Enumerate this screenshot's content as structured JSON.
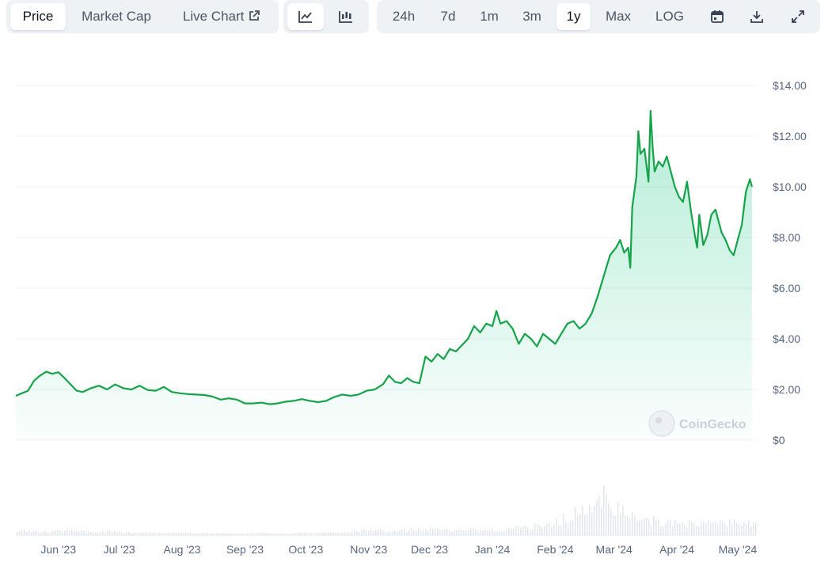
{
  "toolbar": {
    "metric_tabs": [
      {
        "label": "Price",
        "active": true
      },
      {
        "label": "Market Cap",
        "active": false
      },
      {
        "label": "Live Chart",
        "active": false
      }
    ],
    "view_icons": [
      {
        "icon": "line-chart-icon",
        "active": true
      },
      {
        "icon": "candlestick-chart-icon",
        "active": false
      }
    ],
    "ranges": [
      {
        "label": "24h",
        "active": false
      },
      {
        "label": "7d",
        "active": false
      },
      {
        "label": "1m",
        "active": false
      },
      {
        "label": "3m",
        "active": false
      },
      {
        "label": "1y",
        "active": true
      },
      {
        "label": "Max",
        "active": false
      },
      {
        "label": "LOG",
        "active": false
      }
    ],
    "action_icons": [
      "calendar-icon",
      "download-icon",
      "expand-icon"
    ]
  },
  "watermark": "CoinGecko",
  "colors": {
    "line": "#16a34a",
    "fill_top": "#16c784",
    "grid": "#eef0f3",
    "text": "#58667e",
    "volume": "#e2e5ea"
  },
  "chart_data": {
    "type": "area",
    "y_ticks": [
      "$14.00",
      "$12.00",
      "$10.00",
      "$8.00",
      "$6.00",
      "$4.00",
      "$2.00",
      "$0"
    ],
    "ylim": [
      0,
      14
    ],
    "x_ticks": [
      "Jun '23",
      "Jul '23",
      "Aug '23",
      "Sep '23",
      "Oct '23",
      "Nov '23",
      "Dec '23",
      "Jan '24",
      "Feb '24",
      "Mar '24",
      "Apr '24",
      "May '24"
    ],
    "xlim": [
      "2023-05-11",
      "2024-05-10"
    ],
    "series": [
      {
        "points": [
          [
            "2023-05-11",
            1.75
          ],
          [
            "2023-05-14",
            1.85
          ],
          [
            "2023-05-17",
            1.95
          ],
          [
            "2023-05-20",
            2.35
          ],
          [
            "2023-05-23",
            2.55
          ],
          [
            "2023-05-26",
            2.7
          ],
          [
            "2023-05-29",
            2.62
          ],
          [
            "2023-06-01",
            2.68
          ],
          [
            "2023-06-04",
            2.45
          ],
          [
            "2023-06-07",
            2.2
          ],
          [
            "2023-06-10",
            1.95
          ],
          [
            "2023-06-13",
            1.9
          ],
          [
            "2023-06-17",
            2.05
          ],
          [
            "2023-06-21",
            2.15
          ],
          [
            "2023-06-25",
            2.0
          ],
          [
            "2023-06-29",
            2.2
          ],
          [
            "2023-07-03",
            2.05
          ],
          [
            "2023-07-07",
            2.0
          ],
          [
            "2023-07-11",
            2.15
          ],
          [
            "2023-07-15",
            1.98
          ],
          [
            "2023-07-19",
            1.95
          ],
          [
            "2023-07-23",
            2.1
          ],
          [
            "2023-07-27",
            1.9
          ],
          [
            "2023-07-31",
            1.85
          ],
          [
            "2023-08-04",
            1.82
          ],
          [
            "2023-08-08",
            1.8
          ],
          [
            "2023-08-12",
            1.78
          ],
          [
            "2023-08-16",
            1.72
          ],
          [
            "2023-08-20",
            1.6
          ],
          [
            "2023-08-24",
            1.65
          ],
          [
            "2023-08-28",
            1.6
          ],
          [
            "2023-09-01",
            1.45
          ],
          [
            "2023-09-05",
            1.45
          ],
          [
            "2023-09-09",
            1.48
          ],
          [
            "2023-09-13",
            1.42
          ],
          [
            "2023-09-17",
            1.45
          ],
          [
            "2023-09-21",
            1.52
          ],
          [
            "2023-09-25",
            1.55
          ],
          [
            "2023-09-29",
            1.62
          ],
          [
            "2023-10-03",
            1.55
          ],
          [
            "2023-10-07",
            1.5
          ],
          [
            "2023-10-11",
            1.55
          ],
          [
            "2023-10-15",
            1.7
          ],
          [
            "2023-10-19",
            1.8
          ],
          [
            "2023-10-23",
            1.75
          ],
          [
            "2023-10-27",
            1.8
          ],
          [
            "2023-10-31",
            1.95
          ],
          [
            "2023-11-04",
            2.0
          ],
          [
            "2023-11-08",
            2.2
          ],
          [
            "2023-11-11",
            2.55
          ],
          [
            "2023-11-14",
            2.3
          ],
          [
            "2023-11-17",
            2.25
          ],
          [
            "2023-11-20",
            2.45
          ],
          [
            "2023-11-23",
            2.3
          ],
          [
            "2023-11-26",
            2.25
          ],
          [
            "2023-11-29",
            3.3
          ],
          [
            "2023-12-02",
            3.1
          ],
          [
            "2023-12-05",
            3.4
          ],
          [
            "2023-12-08",
            3.2
          ],
          [
            "2023-12-11",
            3.6
          ],
          [
            "2023-12-14",
            3.5
          ],
          [
            "2023-12-17",
            3.75
          ],
          [
            "2023-12-20",
            4.0
          ],
          [
            "2023-12-23",
            4.5
          ],
          [
            "2023-12-26",
            4.25
          ],
          [
            "2023-12-29",
            4.6
          ],
          [
            "2024-01-01",
            4.5
          ],
          [
            "2024-01-03",
            5.1
          ],
          [
            "2024-01-05",
            4.6
          ],
          [
            "2024-01-08",
            4.7
          ],
          [
            "2024-01-11",
            4.4
          ],
          [
            "2024-01-14",
            3.8
          ],
          [
            "2024-01-17",
            4.2
          ],
          [
            "2024-01-20",
            4.0
          ],
          [
            "2024-01-23",
            3.7
          ],
          [
            "2024-01-26",
            4.2
          ],
          [
            "2024-01-29",
            4.0
          ],
          [
            "2024-02-01",
            3.8
          ],
          [
            "2024-02-04",
            4.2
          ],
          [
            "2024-02-07",
            4.6
          ],
          [
            "2024-02-10",
            4.7
          ],
          [
            "2024-02-13",
            4.4
          ],
          [
            "2024-02-16",
            4.6
          ],
          [
            "2024-02-19",
            5.0
          ],
          [
            "2024-02-22",
            5.7
          ],
          [
            "2024-02-25",
            6.5
          ],
          [
            "2024-02-28",
            7.3
          ],
          [
            "2024-03-02",
            7.6
          ],
          [
            "2024-03-04",
            7.9
          ],
          [
            "2024-03-06",
            7.4
          ],
          [
            "2024-03-08",
            7.6
          ],
          [
            "2024-03-09",
            6.8
          ],
          [
            "2024-03-10",
            9.2
          ],
          [
            "2024-03-12",
            10.4
          ],
          [
            "2024-03-13",
            12.2
          ],
          [
            "2024-03-14",
            11.3
          ],
          [
            "2024-03-16",
            11.5
          ],
          [
            "2024-03-18",
            10.2
          ],
          [
            "2024-03-19",
            13.0
          ],
          [
            "2024-03-20",
            11.6
          ],
          [
            "2024-03-21",
            10.6
          ],
          [
            "2024-03-23",
            11.0
          ],
          [
            "2024-03-25",
            10.8
          ],
          [
            "2024-03-27",
            11.2
          ],
          [
            "2024-03-29",
            10.6
          ],
          [
            "2024-03-31",
            10.0
          ],
          [
            "2024-04-02",
            9.6
          ],
          [
            "2024-04-04",
            9.4
          ],
          [
            "2024-04-06",
            10.2
          ],
          [
            "2024-04-08",
            9.0
          ],
          [
            "2024-04-10",
            8.0
          ],
          [
            "2024-04-11",
            7.6
          ],
          [
            "2024-04-12",
            8.9
          ],
          [
            "2024-04-14",
            7.7
          ],
          [
            "2024-04-16",
            8.1
          ],
          [
            "2024-04-18",
            8.9
          ],
          [
            "2024-04-20",
            9.1
          ],
          [
            "2024-04-23",
            8.2
          ],
          [
            "2024-04-25",
            7.9
          ],
          [
            "2024-04-27",
            7.5
          ],
          [
            "2024-04-29",
            7.3
          ],
          [
            "2024-05-01",
            7.9
          ],
          [
            "2024-05-03",
            8.5
          ],
          [
            "2024-05-05",
            9.8
          ],
          [
            "2024-05-07",
            10.3
          ],
          [
            "2024-05-08",
            10.0
          ]
        ]
      }
    ],
    "volume_profile": [
      0.08,
      0.1,
      0.09,
      0.12,
      0.1,
      0.08,
      0.1,
      0.07,
      0.06,
      0.07,
      0.06,
      0.06,
      0.05,
      0.05,
      0.05,
      0.04,
      0.05,
      0.05,
      0.04,
      0.05,
      0.06,
      0.07,
      0.09,
      0.12,
      0.14,
      0.1,
      0.13,
      0.16,
      0.14,
      0.12,
      0.15,
      0.12,
      0.11,
      0.18,
      0.22,
      0.28,
      0.4,
      0.55,
      0.62,
      1.0,
      0.6,
      0.45,
      0.38,
      0.35,
      0.3,
      0.32,
      0.28,
      0.3,
      0.33,
      0.3
    ],
    "grid": true,
    "legend": "none"
  }
}
